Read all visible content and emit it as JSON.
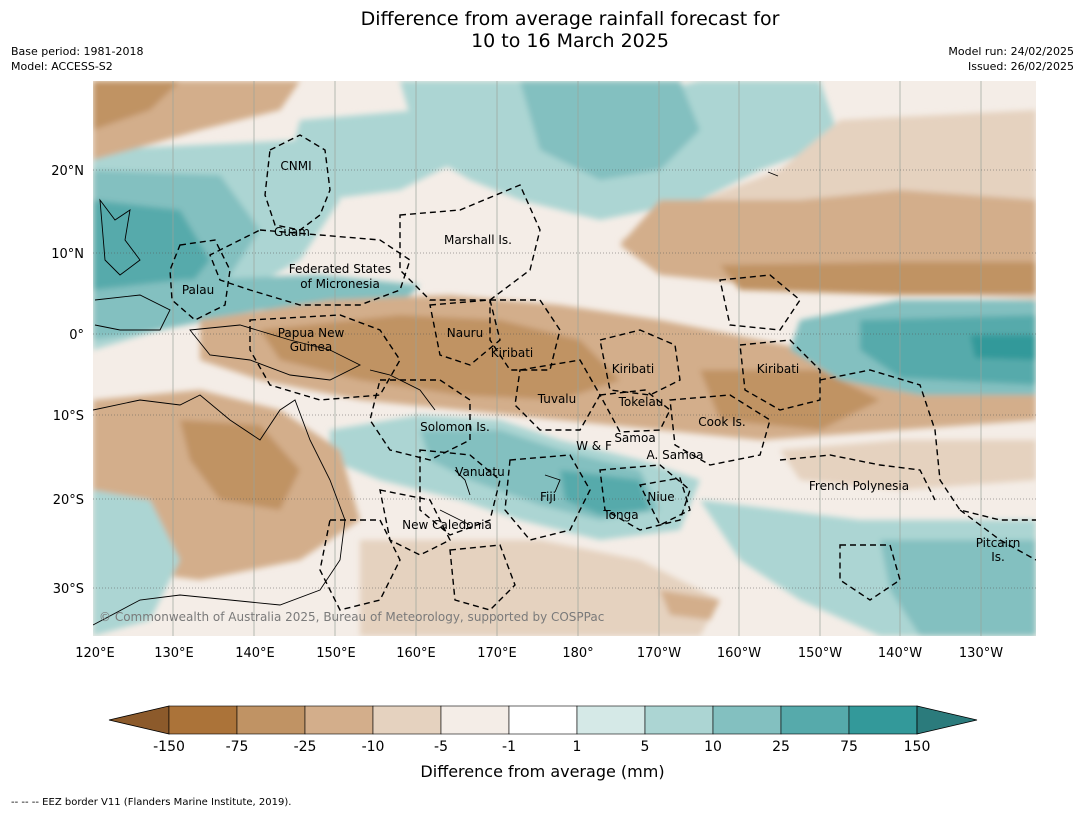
{
  "title": {
    "line1": "Difference from average rainfall forecast for",
    "line2": "10 to 16 March 2025"
  },
  "meta_left": {
    "base_period": "Base period: 1981-2018",
    "model": "Model: ACCESS-S2"
  },
  "meta_right": {
    "model_run": "Model run: 24/02/2025",
    "issued": "Issued: 26/02/2025"
  },
  "map": {
    "lat_labels": [
      "20°N",
      "10°N",
      "0°",
      "10°S",
      "20°S",
      "30°S"
    ],
    "lon_labels": [
      "120°E",
      "130°E",
      "140°E",
      "150°E",
      "160°E",
      "170°E",
      "180°",
      "170°W",
      "160°W",
      "150°W",
      "140°W",
      "130°W"
    ],
    "region_labels": [
      "CNMI",
      "Guam",
      "Marshall Is.",
      "Federated States",
      "of Micronesia",
      "Palau",
      "Papua New",
      "Guinea",
      "Nauru",
      "Kiribati",
      "Kiribati",
      "Kiribati",
      "Tuvalu",
      "Tokelau",
      "Solomon Is.",
      "W & F",
      "Samoa",
      "A. Samoa",
      "Cook Is.",
      "Vanuatu",
      "Fiji",
      "Niue",
      "Tonga",
      "New Caledonia",
      "French Polynesia",
      "Pitcairn",
      "Is."
    ],
    "copyright": "© Commonwealth of Australia 2025, Bureau of Meteorology, supported by COSPPac"
  },
  "colorbar": {
    "ticks": [
      "-150",
      "-75",
      "-25",
      "-10",
      "-5",
      "-1",
      "1",
      "5",
      "10",
      "25",
      "75",
      "150"
    ],
    "colors": [
      "#8c5a2b",
      "#ab7339",
      "#c09364",
      "#d3ae8b",
      "#e5d2bf",
      "#f4ede7",
      "#ffffff",
      "#d5e9e7",
      "#acd5d3",
      "#83c0c0",
      "#56aaab",
      "#33999a",
      "#2b7b7c"
    ],
    "label": "Difference from average (mm)"
  },
  "footnote": "--  --  -- EEZ border V11 (Flanders Marine Institute, 2019)."
}
